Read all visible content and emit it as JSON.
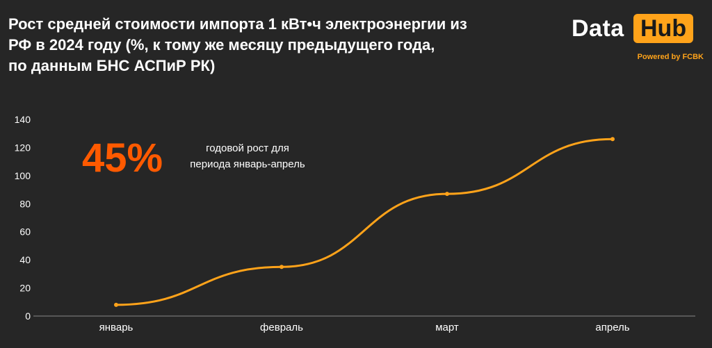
{
  "title_lines": [
    "Рост средней стоимости импорта 1 кВт•ч электроэнергии из",
    "РФ в 2024 году (%, к тому же месяцу предыдущего года,",
    "по данным БНС АСПиР РК)"
  ],
  "logo": {
    "data": "Data",
    "hub": "Hub",
    "powered": "Powered by FCBK"
  },
  "highlight": {
    "value": "45%",
    "caption_lines": [
      "годовой рост для",
      "периода январь-апрель"
    ]
  },
  "colors": {
    "background": "#262626",
    "line": "#ffa31a",
    "highlight": "#ff5a00",
    "axis_text": "#ffffff"
  },
  "chart_data": {
    "type": "line",
    "categories": [
      "январь",
      "февраль",
      "март",
      "апрель"
    ],
    "values": [
      8,
      35,
      87,
      126
    ],
    "ylim": [
      0,
      140
    ],
    "yticks": [
      "0",
      "20",
      "40",
      "60",
      "80",
      "100",
      "120",
      "140"
    ],
    "grid": false,
    "smooth": true
  }
}
